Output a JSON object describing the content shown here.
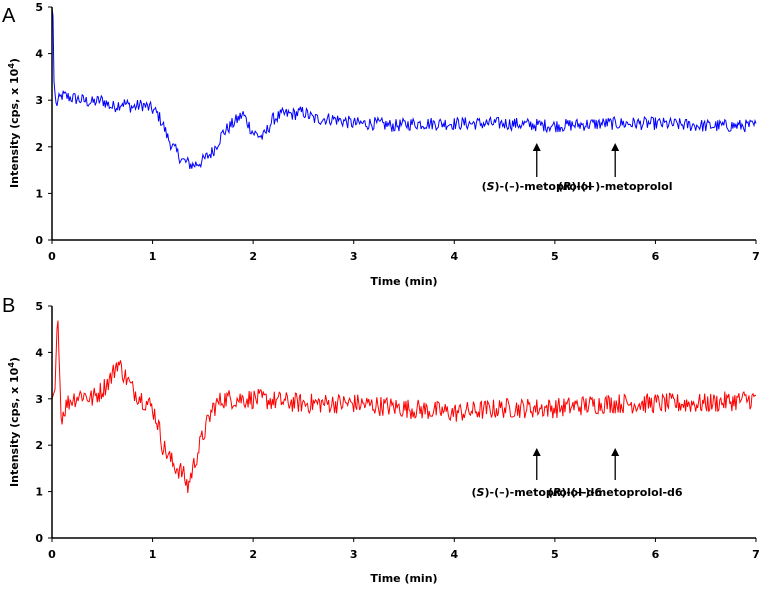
{
  "chart_data": [
    {
      "type": "line",
      "panel_label": "A",
      "xlabel": "Time (min)",
      "ylabel": "Intensity (cps, x 10",
      "ylabel_sup": "4",
      "ylabel_close": ")",
      "xlim": [
        0,
        7
      ],
      "ylim": [
        0,
        5
      ],
      "x_ticks": [
        "0",
        "1",
        "2",
        "3",
        "4",
        "5",
        "6",
        "7"
      ],
      "y_ticks": [
        "0",
        "1",
        "2",
        "3",
        "4",
        "5"
      ],
      "grid": false,
      "series": [
        {
          "color": "#0000ff",
          "points": [
            [
              0,
              5.0
            ],
            [
              0.01,
              4.8
            ],
            [
              0.02,
              3.4
            ],
            [
              0.04,
              2.9
            ],
            [
              0.1,
              3.1
            ],
            [
              0.2,
              3.05
            ],
            [
              0.3,
              3.0
            ],
            [
              0.4,
              2.95
            ],
            [
              0.5,
              3.0
            ],
            [
              0.6,
              2.85
            ],
            [
              0.7,
              2.95
            ],
            [
              0.8,
              2.85
            ],
            [
              0.9,
              2.9
            ],
            [
              1.0,
              2.8
            ],
            [
              1.05,
              2.7
            ],
            [
              1.1,
              2.5
            ],
            [
              1.15,
              2.2
            ],
            [
              1.2,
              2.0
            ],
            [
              1.3,
              1.7
            ],
            [
              1.4,
              1.6
            ],
            [
              1.5,
              1.7
            ],
            [
              1.6,
              1.9
            ],
            [
              1.7,
              2.3
            ],
            [
              1.8,
              2.5
            ],
            [
              1.85,
              2.6
            ],
            [
              1.9,
              2.7
            ],
            [
              2.0,
              2.3
            ],
            [
              2.1,
              2.2
            ],
            [
              2.2,
              2.6
            ],
            [
              2.3,
              2.7
            ],
            [
              2.4,
              2.7
            ],
            [
              2.5,
              2.75
            ],
            [
              2.6,
              2.6
            ],
            [
              2.8,
              2.6
            ],
            [
              3.0,
              2.5
            ],
            [
              3.2,
              2.5
            ],
            [
              3.4,
              2.45
            ],
            [
              3.6,
              2.5
            ],
            [
              4.0,
              2.5
            ],
            [
              4.5,
              2.5
            ],
            [
              5.0,
              2.45
            ],
            [
              5.5,
              2.5
            ],
            [
              6.0,
              2.5
            ],
            [
              6.5,
              2.45
            ],
            [
              7.0,
              2.45
            ]
          ]
        }
      ],
      "annotations": [
        {
          "x": 4.82,
          "prefix": "(",
          "italic": "S",
          "suffix": ")-(–)-metoprolol"
        },
        {
          "x": 5.6,
          "prefix": "(",
          "italic": "R",
          "suffix": ")-(+)-metoprolol"
        }
      ]
    },
    {
      "type": "line",
      "panel_label": "B",
      "xlabel": "Time (min)",
      "ylabel": "Intensity (cps, x 10",
      "ylabel_sup": "4",
      "ylabel_close": ")",
      "xlim": [
        0,
        7
      ],
      "ylim": [
        0,
        5
      ],
      "x_ticks": [
        "0",
        "1",
        "2",
        "3",
        "4",
        "5",
        "6",
        "7"
      ],
      "y_ticks": [
        "0",
        "1",
        "2",
        "3",
        "4",
        "5"
      ],
      "grid": false,
      "series": [
        {
          "color": "#ff0000",
          "points": [
            [
              0,
              3.0
            ],
            [
              0.03,
              3.2
            ],
            [
              0.06,
              4.9
            ],
            [
              0.09,
              2.6
            ],
            [
              0.15,
              2.9
            ],
            [
              0.2,
              3.0
            ],
            [
              0.3,
              3.1
            ],
            [
              0.4,
              3.0
            ],
            [
              0.5,
              3.2
            ],
            [
              0.6,
              3.5
            ],
            [
              0.65,
              3.8
            ],
            [
              0.7,
              3.6
            ],
            [
              0.8,
              3.2
            ],
            [
              0.9,
              3.0
            ],
            [
              1.0,
              2.8
            ],
            [
              1.05,
              2.5
            ],
            [
              1.1,
              2.0
            ],
            [
              1.2,
              1.6
            ],
            [
              1.3,
              1.4
            ],
            [
              1.35,
              1.1
            ],
            [
              1.4,
              1.5
            ],
            [
              1.5,
              2.2
            ],
            [
              1.6,
              2.8
            ],
            [
              1.7,
              3.0
            ],
            [
              1.8,
              3.0
            ],
            [
              2.0,
              3.0
            ],
            [
              2.5,
              2.9
            ],
            [
              3.0,
              2.9
            ],
            [
              3.5,
              2.8
            ],
            [
              4.0,
              2.7
            ],
            [
              4.5,
              2.8
            ],
            [
              5.0,
              2.8
            ],
            [
              5.5,
              2.9
            ],
            [
              6.0,
              2.9
            ],
            [
              6.5,
              2.9
            ],
            [
              7.0,
              3.0
            ]
          ]
        }
      ],
      "annotations": [
        {
          "x": 4.82,
          "prefix": "(",
          "italic": "S",
          "suffix": ")-(–)-metoprolol-d6"
        },
        {
          "x": 5.6,
          "prefix": "(",
          "italic": "R",
          "suffix": ")-(+)-metoprolol-d6"
        }
      ]
    }
  ]
}
